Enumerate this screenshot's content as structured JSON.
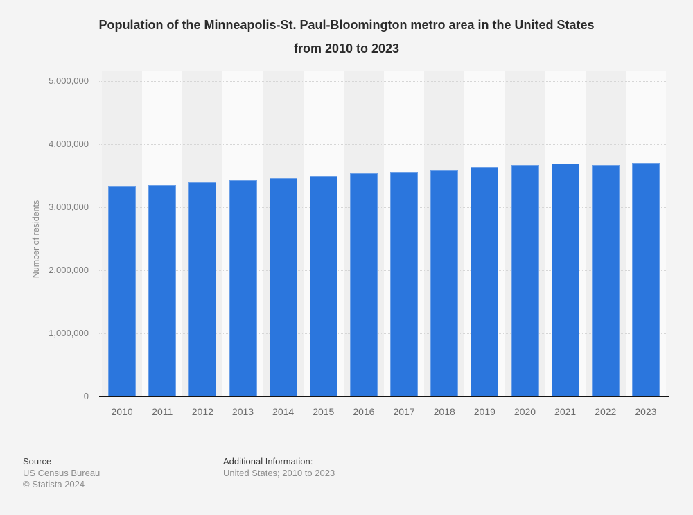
{
  "title": {
    "line1": "Population of the Minneapolis-St. Paul-Bloomington metro area in the United States",
    "line2": "from 2010 to 2023"
  },
  "chart_data": {
    "type": "bar",
    "title": "Population of the Minneapolis-St. Paul-Bloomington metro area in the United States from 2010 to 2023",
    "categories": [
      "2010",
      "2011",
      "2012",
      "2013",
      "2014",
      "2015",
      "2016",
      "2017",
      "2018",
      "2019",
      "2020",
      "2021",
      "2022",
      "2023"
    ],
    "values": [
      3325000,
      3350000,
      3400000,
      3430000,
      3465000,
      3490000,
      3540000,
      3555000,
      3595000,
      3635000,
      3670000,
      3690000,
      3675000,
      3705000
    ],
    "xlabel": "",
    "ylabel": "Number of residents",
    "ylim": [
      0,
      5000000
    ],
    "ytick_values": [
      0,
      1000000,
      2000000,
      3000000,
      4000000,
      5000000
    ],
    "ytick_labels": [
      "0",
      "1,000,000",
      "2,000,000",
      "3,000,000",
      "4,000,000",
      "5,000,000"
    ],
    "grid": "horizontal-dotted",
    "legend_position": "none",
    "bar_color": "#2b76dd",
    "band_color_dark": "#efefef",
    "band_color_light": "#fafafa"
  },
  "footer": {
    "source_label": "Source",
    "source_line1": "US Census Bureau",
    "source_line2": "© Statista 2024",
    "additional_label": "Additional Information:",
    "additional_line1": "United States; 2010 to 2023"
  }
}
